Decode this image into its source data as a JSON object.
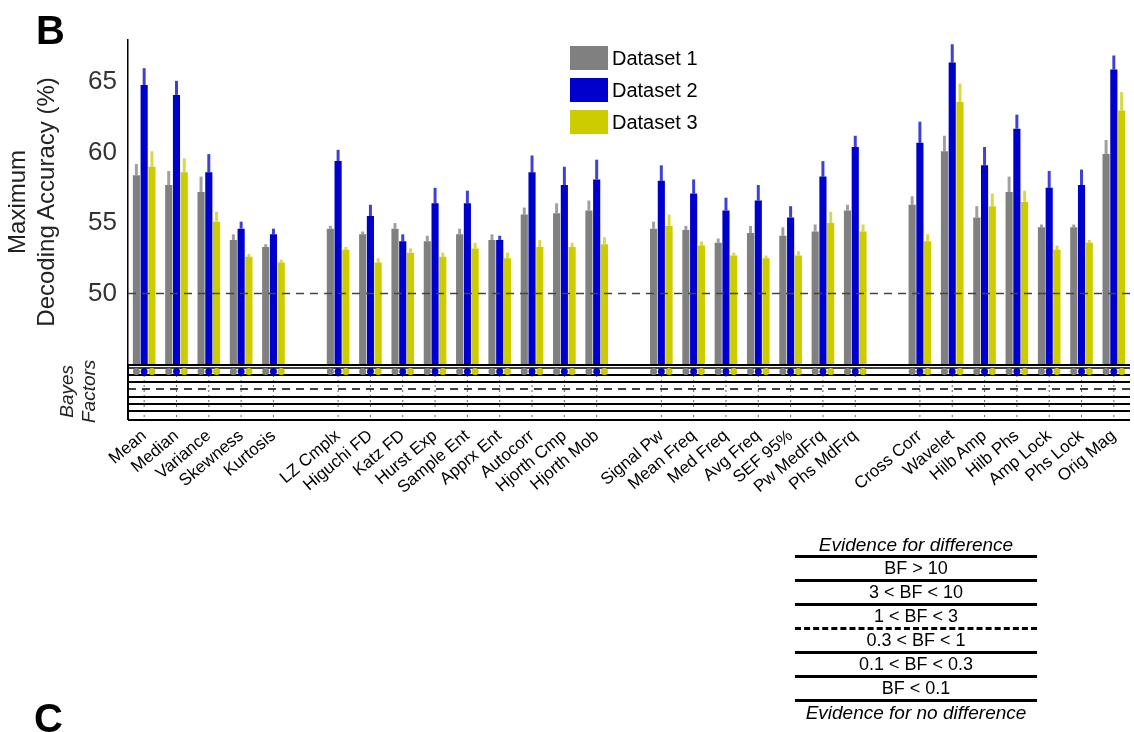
{
  "chart_data": {
    "type": "bar",
    "ylabel": "Maximum Decoding Accuracy (%)",
    "annotations": [
      "B",
      "Bayes Factors",
      "Evidence for difference",
      "BF > 10",
      "3 < BF < 10",
      "1 < BF < 3",
      "0.3 < BF < 1",
      "0.1 < BF < 0.3",
      "BF < 0.1",
      "Evidence for no difference",
      "C"
    ],
    "categories": [
      "Mean",
      "Median",
      "Variance",
      "Skewness",
      "Kurtosis",
      null,
      "LZ Cmplx",
      "Higuchi FD",
      "Katz FD",
      "Hurst Exp",
      "Sample Ent",
      "Apprx Ent",
      "Autocorr",
      "Hjorth Cmp",
      "Hjorth Mob",
      null,
      "Signal Pw",
      "Mean Freq",
      "Med Freq",
      "Avg Freq",
      "SEF 95%",
      "Pw MedFrq",
      "Phs MdFrq",
      null,
      "Cross Corr",
      "Wavelet",
      "Hilb Amp",
      "Hilb Phs",
      "Amp Lock",
      "Phs Lock",
      "Orig Mag"
    ],
    "series": [
      {
        "name": "Dataset 1",
        "color": "#808080",
        "values": [
          58.4,
          57.7,
          57.2,
          53.8,
          53.3,
          null,
          54.6,
          54.2,
          54.6,
          53.7,
          54.2,
          53.8,
          55.6,
          55.7,
          55.9,
          null,
          54.6,
          54.5,
          53.6,
          54.3,
          54.1,
          54.4,
          55.9,
          null,
          56.3,
          60.1,
          55.4,
          57.2,
          54.7,
          54.7,
          59.9
        ],
        "errors": [
          [
            58.4,
            59.2
          ],
          [
            57.7,
            58.7
          ],
          [
            57.2,
            58.3
          ],
          [
            53.8,
            54.2
          ],
          [
            53.3,
            53.5
          ],
          null,
          [
            54.6,
            54.8
          ],
          [
            54.2,
            54.4
          ],
          [
            54.6,
            55.0
          ],
          [
            53.7,
            54.1
          ],
          [
            54.2,
            54.6
          ],
          [
            53.8,
            54.2
          ],
          [
            55.6,
            56.1
          ],
          [
            55.7,
            56.4
          ],
          [
            55.9,
            56.6
          ],
          null,
          [
            54.6,
            55.1
          ],
          [
            54.5,
            54.8
          ],
          [
            53.6,
            53.9
          ],
          [
            54.3,
            54.8
          ],
          [
            54.1,
            54.7
          ],
          [
            54.4,
            54.9
          ],
          [
            55.9,
            56.3
          ],
          null,
          [
            56.3,
            56.9
          ],
          [
            60.1,
            61.2
          ],
          [
            55.4,
            56.2
          ],
          [
            57.2,
            58.3
          ],
          [
            54.7,
            54.9
          ],
          [
            54.7,
            54.9
          ],
          [
            59.9,
            60.9
          ]
        ]
      },
      {
        "name": "Dataset 2",
        "color": "#0000cc",
        "values": [
          64.8,
          64.1,
          58.6,
          54.6,
          54.2,
          null,
          59.4,
          55.5,
          53.7,
          56.4,
          56.4,
          53.8,
          58.6,
          57.7,
          58.1,
          null,
          58.0,
          57.1,
          55.9,
          56.6,
          55.4,
          58.3,
          60.4,
          null,
          60.7,
          66.4,
          59.1,
          61.7,
          57.5,
          57.7,
          65.9
        ],
        "errors": [
          [
            64.8,
            66.0
          ],
          [
            64.1,
            65.1
          ],
          [
            58.6,
            59.9
          ],
          [
            54.6,
            55.1
          ],
          [
            54.2,
            54.6
          ],
          null,
          [
            59.4,
            60.2
          ],
          [
            55.5,
            56.3
          ],
          [
            53.7,
            54.2
          ],
          [
            56.4,
            57.5
          ],
          [
            56.4,
            57.3
          ],
          [
            53.8,
            54.1
          ],
          [
            58.6,
            59.8
          ],
          [
            57.7,
            59.0
          ],
          [
            58.1,
            59.5
          ],
          null,
          [
            58.0,
            59.1
          ],
          [
            57.1,
            58.1
          ],
          [
            55.9,
            56.8
          ],
          [
            56.6,
            57.7
          ],
          [
            55.4,
            56.2
          ],
          [
            58.3,
            59.4
          ],
          [
            60.4,
            61.2
          ],
          null,
          [
            60.7,
            62.2
          ],
          [
            66.4,
            67.7
          ],
          [
            59.1,
            60.4
          ],
          [
            61.7,
            62.7
          ],
          [
            57.5,
            58.7
          ],
          [
            57.7,
            58.8
          ],
          [
            65.9,
            66.9
          ]
        ]
      },
      {
        "name": "Dataset 3",
        "color": "#cccc00",
        "values": [
          59.0,
          58.6,
          55.1,
          52.6,
          52.2,
          null,
          53.1,
          52.2,
          52.9,
          52.6,
          53.2,
          52.5,
          53.3,
          53.3,
          53.5,
          null,
          54.8,
          53.4,
          52.7,
          52.5,
          52.7,
          55.0,
          54.4,
          null,
          53.7,
          63.6,
          56.2,
          56.5,
          53.1,
          53.6,
          63.0
        ],
        "errors": [
          [
            59.0,
            60.1
          ],
          [
            58.6,
            59.6
          ],
          [
            55.1,
            55.8
          ],
          [
            52.6,
            52.8
          ],
          [
            52.2,
            52.4
          ],
          null,
          [
            53.1,
            53.3
          ],
          [
            52.2,
            52.5
          ],
          [
            52.9,
            53.2
          ],
          [
            52.6,
            52.9
          ],
          [
            53.2,
            53.6
          ],
          [
            52.5,
            52.9
          ],
          [
            53.3,
            53.8
          ],
          [
            53.3,
            53.6
          ],
          [
            53.5,
            54.0
          ],
          null,
          [
            54.8,
            55.6
          ],
          [
            53.4,
            53.7
          ],
          [
            52.7,
            52.9
          ],
          [
            52.5,
            52.7
          ],
          [
            52.7,
            53.0
          ],
          [
            55.0,
            55.8
          ],
          [
            54.4,
            54.9
          ],
          null,
          [
            53.7,
            54.2
          ],
          [
            63.6,
            64.9
          ],
          [
            56.2,
            57.1
          ],
          [
            56.5,
            57.3
          ],
          [
            53.1,
            53.4
          ],
          [
            53.6,
            53.8
          ],
          [
            63.0,
            64.3
          ]
        ]
      }
    ],
    "ylim": [
      45,
      68
    ],
    "yticks": [
      50,
      55,
      60,
      65
    ],
    "legend": "top",
    "grid": false,
    "ref_lines": [
      {
        "axis": "y",
        "value": 50,
        "line_style": "dashed"
      }
    ]
  }
}
